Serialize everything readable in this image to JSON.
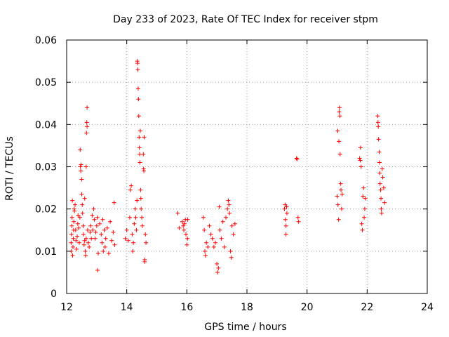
{
  "chart_data": {
    "type": "scatter",
    "title": "Day 233 of 2023, Rate Of TEC Index for receiver stpm",
    "xlabel": "GPS time / hours",
    "ylabel": "ROTI / TECUs",
    "xlim": [
      12,
      24
    ],
    "ylim": [
      0,
      0.06
    ],
    "x_ticks": [
      "12",
      "14",
      "16",
      "18",
      "20",
      "22",
      "24"
    ],
    "y_ticks": [
      "0",
      "0.01",
      "0.02",
      "0.03",
      "0.04",
      "0.05",
      "0.06"
    ],
    "grid": true,
    "marker": "plus",
    "color": "#ff0000",
    "series": [
      {
        "points": [
          [
            12.15,
            0.01
          ],
          [
            12.15,
            0.012
          ],
          [
            12.16,
            0.014
          ],
          [
            12.17,
            0.016
          ],
          [
            12.18,
            0.018
          ],
          [
            12.19,
            0.022
          ],
          [
            12.2,
            0.009
          ],
          [
            12.21,
            0.011
          ],
          [
            12.22,
            0.013
          ],
          [
            12.23,
            0.015
          ],
          [
            12.24,
            0.017
          ],
          [
            12.25,
            0.02
          ],
          [
            12.26,
            0.0195
          ],
          [
            12.28,
            0.021
          ],
          [
            12.3,
            0.015
          ],
          [
            12.31,
            0.0125
          ],
          [
            12.33,
            0.0105
          ],
          [
            12.35,
            0.0135
          ],
          [
            12.37,
            0.0165
          ],
          [
            12.38,
            0.0185
          ],
          [
            12.4,
            0.0155
          ],
          [
            12.42,
            0.012
          ],
          [
            12.44,
            0.018
          ],
          [
            12.45,
            0.034
          ],
          [
            12.46,
            0.03
          ],
          [
            12.47,
            0.029
          ],
          [
            12.48,
            0.0305
          ],
          [
            12.5,
            0.027
          ],
          [
            12.5,
            0.0235
          ],
          [
            12.52,
            0.021
          ],
          [
            12.53,
            0.019
          ],
          [
            12.55,
            0.016
          ],
          [
            12.56,
            0.014
          ],
          [
            12.58,
            0.0115
          ],
          [
            12.6,
            0.0125
          ],
          [
            12.6,
            0.0225
          ],
          [
            12.62,
            0.01
          ],
          [
            12.63,
            0.009
          ],
          [
            12.65,
            0.013
          ],
          [
            12.65,
            0.03
          ],
          [
            12.66,
            0.038
          ],
          [
            12.67,
            0.0405
          ],
          [
            12.68,
            0.0395
          ],
          [
            12.68,
            0.044
          ],
          [
            12.7,
            0.015
          ],
          [
            12.72,
            0.012
          ],
          [
            12.75,
            0.011
          ],
          [
            12.78,
            0.0145
          ],
          [
            12.8,
            0.016
          ],
          [
            12.82,
            0.013
          ],
          [
            12.85,
            0.0185
          ],
          [
            12.87,
            0.015
          ],
          [
            12.9,
            0.02
          ],
          [
            12.92,
            0.0175
          ],
          [
            12.95,
            0.013
          ],
          [
            12.97,
            0.0145
          ],
          [
            13.0,
            0.016
          ],
          [
            13.02,
            0.018
          ],
          [
            13.03,
            0.0055
          ],
          [
            13.05,
            0.0095
          ],
          [
            13.1,
            0.0165
          ],
          [
            13.15,
            0.014
          ],
          [
            13.18,
            0.012
          ],
          [
            13.2,
            0.0175
          ],
          [
            13.22,
            0.01
          ],
          [
            13.25,
            0.015
          ],
          [
            13.28,
            0.011
          ],
          [
            13.3,
            0.013
          ],
          [
            13.35,
            0.0155
          ],
          [
            13.4,
            0.0095
          ],
          [
            13.45,
            0.017
          ],
          [
            13.5,
            0.0125
          ],
          [
            13.55,
            0.0145
          ],
          [
            13.58,
            0.0215
          ],
          [
            13.6,
            0.0115
          ],
          [
            13.95,
            0.013
          ],
          [
            14.0,
            0.015
          ],
          [
            14.05,
            0.0125
          ],
          [
            14.1,
            0.018
          ],
          [
            14.12,
            0.0245
          ],
          [
            14.15,
            0.0255
          ],
          [
            14.18,
            0.014
          ],
          [
            14.2,
            0.01
          ],
          [
            14.22,
            0.012
          ],
          [
            14.25,
            0.0165
          ],
          [
            14.28,
            0.02
          ],
          [
            14.3,
            0.018
          ],
          [
            14.32,
            0.015
          ],
          [
            14.34,
            0.022
          ],
          [
            14.35,
            0.055
          ],
          [
            14.36,
            0.0545
          ],
          [
            14.37,
            0.053
          ],
          [
            14.38,
            0.0485
          ],
          [
            14.39,
            0.046
          ],
          [
            14.4,
            0.042
          ],
          [
            14.41,
            0.037
          ],
          [
            14.42,
            0.0345
          ],
          [
            14.43,
            0.033
          ],
          [
            14.44,
            0.031
          ],
          [
            14.45,
            0.0385
          ],
          [
            14.46,
            0.0245
          ],
          [
            14.47,
            0.0225
          ],
          [
            14.48,
            0.02
          ],
          [
            14.5,
            0.018
          ],
          [
            14.52,
            0.016
          ],
          [
            14.55,
            0.033
          ],
          [
            14.56,
            0.0295
          ],
          [
            14.57,
            0.029
          ],
          [
            14.58,
            0.037
          ],
          [
            14.6,
            0.0075
          ],
          [
            14.6,
            0.008
          ],
          [
            14.62,
            0.014
          ],
          [
            14.64,
            0.012
          ],
          [
            15.7,
            0.019
          ],
          [
            15.75,
            0.0155
          ],
          [
            15.85,
            0.017
          ],
          [
            15.88,
            0.016
          ],
          [
            15.9,
            0.015
          ],
          [
            15.92,
            0.0165
          ],
          [
            15.95,
            0.0175
          ],
          [
            15.97,
            0.014
          ],
          [
            16.0,
            0.0115
          ],
          [
            16.02,
            0.013
          ],
          [
            16.03,
            0.0175
          ],
          [
            16.55,
            0.018
          ],
          [
            16.58,
            0.015
          ],
          [
            16.6,
            0.01
          ],
          [
            16.62,
            0.009
          ],
          [
            16.65,
            0.012
          ],
          [
            16.7,
            0.011
          ],
          [
            16.75,
            0.016
          ],
          [
            16.8,
            0.014
          ],
          [
            16.85,
            0.013
          ],
          [
            16.9,
            0.011
          ],
          [
            16.95,
            0.012
          ],
          [
            17.0,
            0.007
          ],
          [
            17.02,
            0.005
          ],
          [
            17.05,
            0.006
          ],
          [
            17.08,
            0.0205
          ],
          [
            17.1,
            0.015
          ],
          [
            17.15,
            0.013
          ],
          [
            17.2,
            0.017
          ],
          [
            17.25,
            0.011
          ],
          [
            17.3,
            0.018
          ],
          [
            17.35,
            0.02
          ],
          [
            17.38,
            0.022
          ],
          [
            17.4,
            0.021
          ],
          [
            17.42,
            0.019
          ],
          [
            17.45,
            0.01
          ],
          [
            17.48,
            0.0085
          ],
          [
            17.5,
            0.016
          ],
          [
            17.55,
            0.014
          ],
          [
            17.6,
            0.0165
          ],
          [
            19.25,
            0.02
          ],
          [
            19.27,
            0.021
          ],
          [
            19.28,
            0.0175
          ],
          [
            19.3,
            0.016
          ],
          [
            19.3,
            0.014
          ],
          [
            19.32,
            0.0205
          ],
          [
            19.33,
            0.019
          ],
          [
            19.65,
            0.032
          ],
          [
            19.67,
            0.0318
          ],
          [
            19.7,
            0.018
          ],
          [
            19.72,
            0.017
          ],
          [
            21.0,
            0.023
          ],
          [
            21.02,
            0.0385
          ],
          [
            21.03,
            0.021
          ],
          [
            21.05,
            0.0175
          ],
          [
            21.06,
            0.036
          ],
          [
            21.07,
            0.043
          ],
          [
            21.08,
            0.044
          ],
          [
            21.09,
            0.042
          ],
          [
            21.1,
            0.033
          ],
          [
            21.12,
            0.026
          ],
          [
            21.13,
            0.0245
          ],
          [
            21.15,
            0.02
          ],
          [
            21.17,
            0.0235
          ],
          [
            21.75,
            0.032
          ],
          [
            21.77,
            0.0315
          ],
          [
            21.78,
            0.0345
          ],
          [
            21.8,
            0.03
          ],
          [
            21.82,
            0.0165
          ],
          [
            21.84,
            0.015
          ],
          [
            21.86,
            0.023
          ],
          [
            21.88,
            0.025
          ],
          [
            21.9,
            0.018
          ],
          [
            21.92,
            0.02
          ],
          [
            21.94,
            0.0225
          ],
          [
            22.35,
            0.042
          ],
          [
            22.36,
            0.0405
          ],
          [
            22.37,
            0.0395
          ],
          [
            22.38,
            0.0365
          ],
          [
            22.4,
            0.0335
          ],
          [
            22.41,
            0.031
          ],
          [
            22.42,
            0.0285
          ],
          [
            22.43,
            0.026
          ],
          [
            22.45,
            0.0245
          ],
          [
            22.46,
            0.0225
          ],
          [
            22.47,
            0.02
          ],
          [
            22.48,
            0.019
          ],
          [
            22.5,
            0.0295
          ],
          [
            22.52,
            0.0275
          ],
          [
            22.55,
            0.025
          ],
          [
            22.58,
            0.0215
          ]
        ]
      }
    ]
  }
}
